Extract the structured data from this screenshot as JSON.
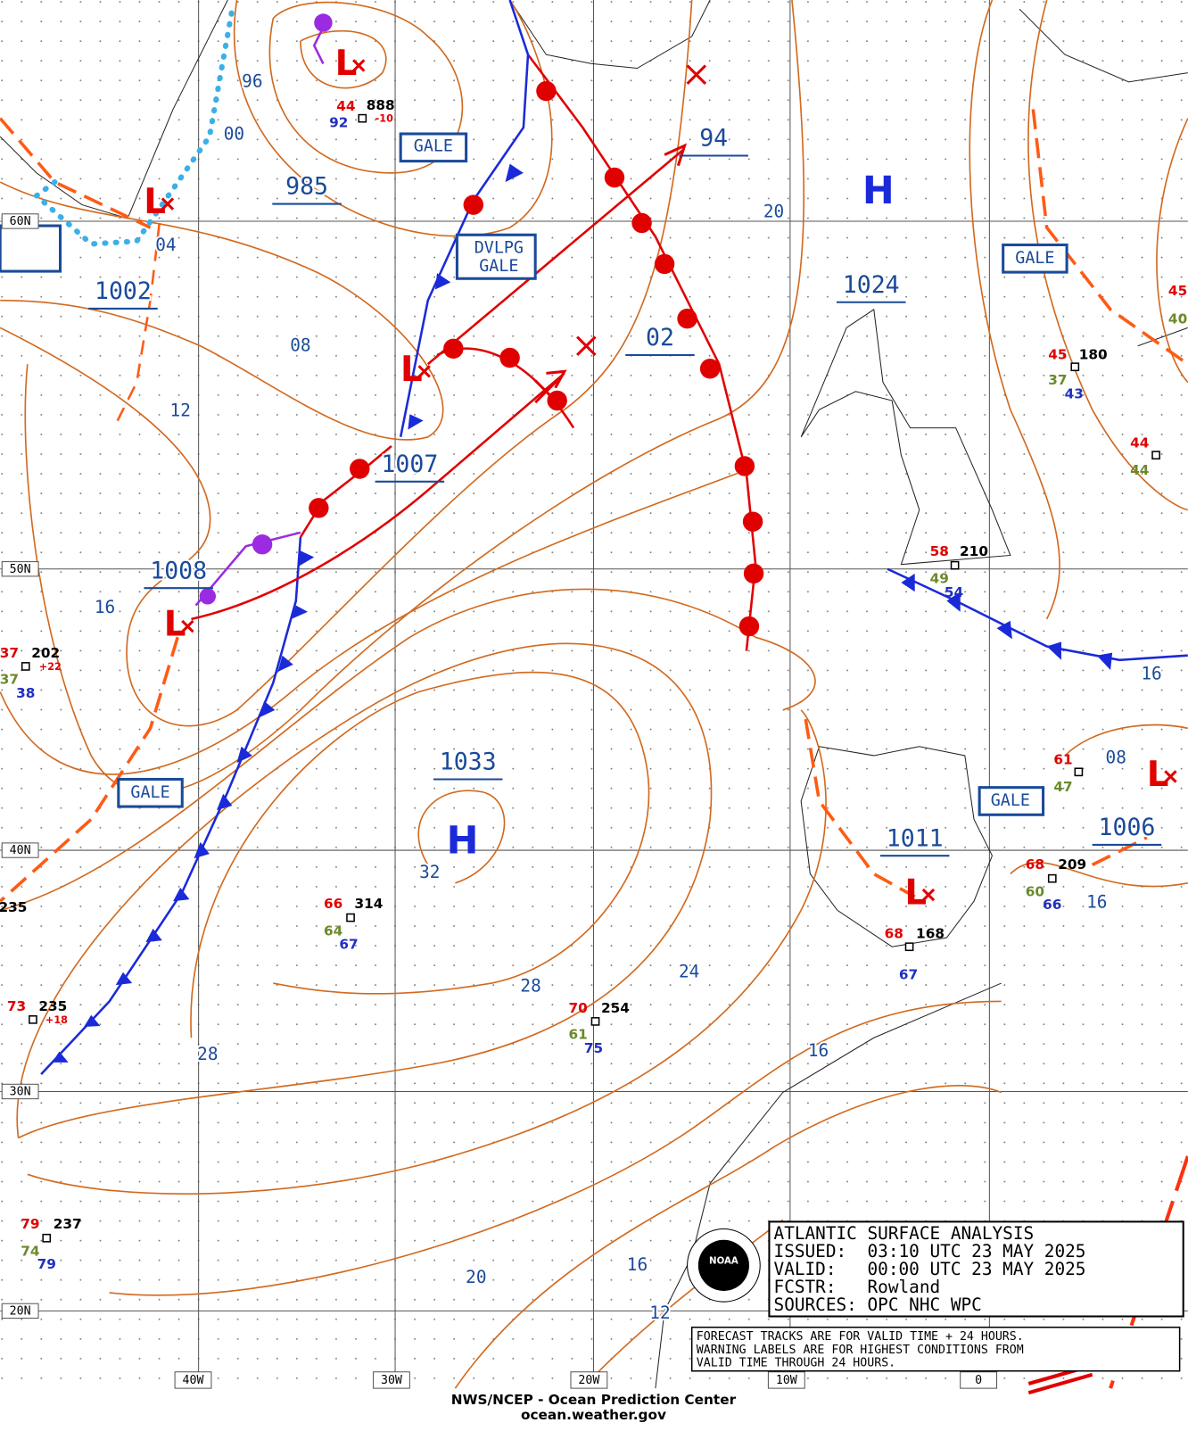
{
  "grid_labels": {
    "lat": [
      "60N",
      "50N",
      "40N",
      "30N",
      "20N"
    ],
    "lon": [
      "40W",
      "30W",
      "20W",
      "10W",
      "0"
    ]
  },
  "isobar_labels": [
    "96",
    "00",
    "985",
    "04",
    "1002",
    "08",
    "12",
    "1007",
    "1008",
    "16",
    "94",
    "20",
    "02",
    "1024",
    "16",
    "1033",
    "32",
    "28",
    "24",
    "16",
    "28",
    "1011",
    "08",
    "1006",
    "16",
    "20",
    "16",
    "12"
  ],
  "centers": [
    "L",
    "L",
    "L",
    "L",
    "L",
    "L",
    "H",
    "H"
  ],
  "warnings": [
    "GALE",
    "DVLPG",
    "GALE",
    "GALE",
    "GALE",
    "GALE"
  ],
  "stations": [
    [
      "44",
      "888",
      "92",
      "-10"
    ],
    [
      "45",
      "180",
      "37",
      "43"
    ],
    [
      "44",
      "44"
    ],
    [
      "58",
      "210",
      "49",
      "54"
    ],
    [
      "37",
      "202",
      "37",
      "38",
      "+22"
    ],
    [
      "66",
      "314",
      "64",
      "67"
    ],
    [
      "73",
      "235",
      "+18"
    ],
    [
      "70",
      "254",
      "61",
      "75"
    ],
    [
      "68",
      "168",
      "67"
    ],
    [
      "61",
      "47"
    ],
    [
      "68",
      "209",
      "60",
      "66"
    ],
    [
      "79",
      "237",
      "74",
      "79"
    ],
    [
      "235"
    ],
    [
      "45",
      "40"
    ]
  ],
  "title_box": [
    "ATLANTIC SURFACE ANALYSIS",
    "ISSUED:  03:10 UTC 23 MAY 2025",
    "VALID:   00:00 UTC 23 MAY 2025",
    "FCSTR:   Rowland",
    "SOURCES: OPC NHC WPC"
  ],
  "notice": [
    "FORECAST TRACKS ARE FOR VALID TIME + 24 HOURS.",
    "WARNING LABELS ARE FOR HIGHEST CONDITIONS FROM",
    "VALID TIME THROUGH 24 HOURS."
  ],
  "footer": [
    "NWS/NCEP - Ocean Prediction Center",
    "ocean.weather.gov"
  ]
}
